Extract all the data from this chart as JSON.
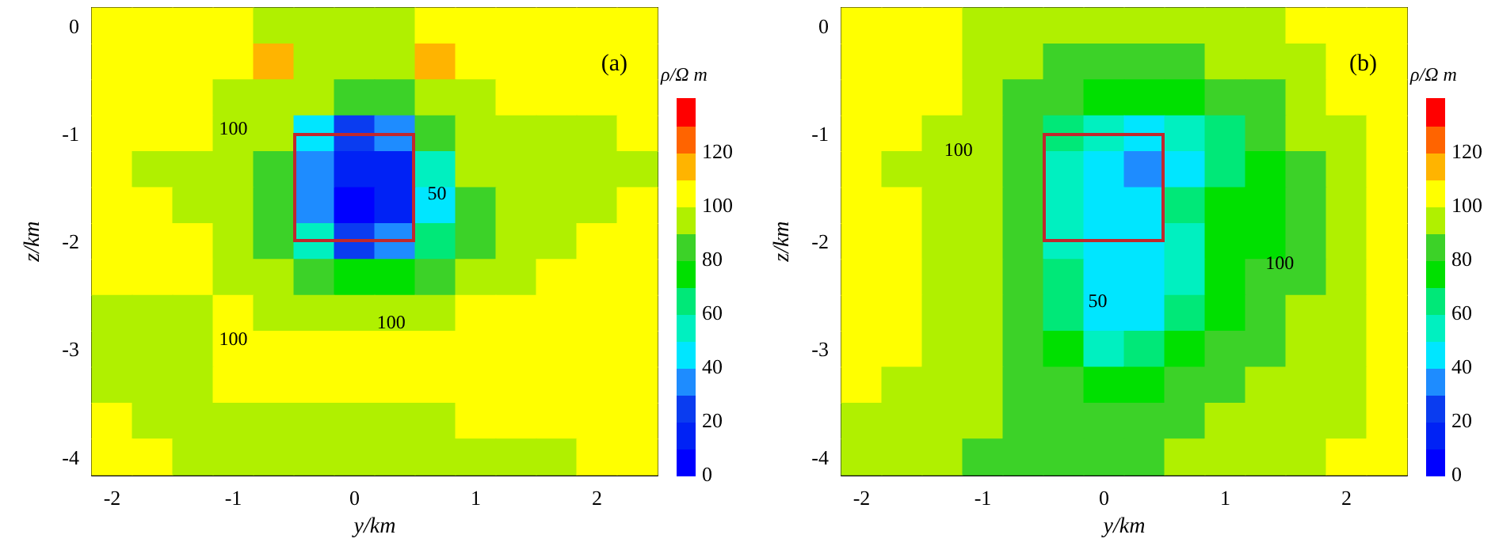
{
  "chart_data": [
    {
      "type": "heatmap",
      "title": "(a)",
      "xlabel": "y/km",
      "ylabel": "z/km",
      "clabel": "ρ/Ω m",
      "categories": [
        "-2",
        null,
        null,
        "-1",
        null,
        null,
        "0",
        null,
        null,
        "1",
        null,
        null,
        "2",
        null
      ],
      "y_categories": [
        "0",
        null,
        null,
        "-1",
        null,
        null,
        "-2",
        null,
        null,
        "-3",
        null,
        null,
        "-4"
      ],
      "cells": [
        [
          105,
          105,
          105,
          105,
          95,
          95,
          95,
          95,
          105,
          105,
          105,
          105,
          105,
          105
        ],
        [
          105,
          105,
          105,
          105,
          115,
          95,
          90,
          95,
          115,
          105,
          105,
          105,
          105,
          105
        ],
        [
          105,
          105,
          105,
          95,
          95,
          90,
          80,
          80,
          90,
          95,
          105,
          105,
          105,
          105
        ],
        [
          105,
          105,
          105,
          95,
          90,
          45,
          25,
          35,
          85,
          95,
          95,
          95,
          95,
          105
        ],
        [
          105,
          95,
          95,
          95,
          85,
          35,
          15,
          15,
          50,
          90,
          95,
          95,
          95,
          95
        ],
        [
          105,
          105,
          95,
          95,
          80,
          30,
          5,
          15,
          40,
          85,
          95,
          95,
          95,
          105
        ],
        [
          105,
          105,
          105,
          95,
          85,
          55,
          25,
          35,
          60,
          85,
          95,
          95,
          105,
          105
        ],
        [
          105,
          105,
          105,
          95,
          90,
          80,
          70,
          70,
          85,
          95,
          95,
          105,
          105,
          105
        ],
        [
          95,
          95,
          95,
          105,
          95,
          95,
          95,
          95,
          95,
          105,
          105,
          105,
          105,
          105
        ],
        [
          95,
          95,
          95,
          105,
          105,
          105,
          105,
          105,
          105,
          105,
          105,
          105,
          105,
          105
        ],
        [
          95,
          95,
          95,
          105,
          105,
          105,
          105,
          105,
          105,
          105,
          105,
          105,
          105,
          105
        ],
        [
          105,
          95,
          95,
          95,
          95,
          95,
          95,
          95,
          95,
          105,
          105,
          105,
          105,
          105
        ],
        [
          105,
          105,
          95,
          95,
          95,
          95,
          95,
          95,
          95,
          95,
          95,
          95,
          105,
          105
        ]
      ],
      "clim": [
        0,
        140
      ],
      "cticks": [
        0,
        20,
        40,
        60,
        80,
        100,
        120
      ],
      "colors": [
        "#0000ff",
        "#0022f5",
        "#0a3cf0",
        "#1e8cff",
        "#00e6ff",
        "#00f0c0",
        "#00e878",
        "#00e000",
        "#3cd228",
        "#b0f000",
        "#ffff00",
        "#ffb400",
        "#ff6400",
        "#ff0000"
      ],
      "annotations": [
        "100",
        "50",
        "100",
        "100"
      ]
    },
    {
      "type": "heatmap",
      "title": "(b)",
      "xlabel": "y/km",
      "ylabel": "z/km",
      "clabel": "ρ/Ω m",
      "categories": [
        "-2",
        null,
        null,
        "-1",
        null,
        null,
        "0",
        null,
        null,
        "1",
        null,
        null,
        "2",
        null
      ],
      "y_categories": [
        "0",
        null,
        null,
        "-1",
        null,
        null,
        "-2",
        null,
        null,
        "-3",
        null,
        null,
        "-4"
      ],
      "cells": [
        [
          105,
          105,
          105,
          95,
          95,
          95,
          95,
          95,
          95,
          95,
          95,
          105,
          105,
          105
        ],
        [
          105,
          105,
          105,
          95,
          95,
          85,
          85,
          85,
          85,
          95,
          95,
          95,
          105,
          105
        ],
        [
          105,
          105,
          105,
          95,
          85,
          85,
          75,
          75,
          75,
          85,
          85,
          95,
          105,
          105
        ],
        [
          105,
          105,
          95,
          95,
          85,
          65,
          55,
          45,
          55,
          65,
          85,
          95,
          95,
          105
        ],
        [
          105,
          95,
          95,
          95,
          85,
          55,
          45,
          35,
          45,
          65,
          75,
          85,
          95,
          105
        ],
        [
          105,
          105,
          95,
          95,
          85,
          55,
          45,
          45,
          65,
          75,
          75,
          85,
          95,
          105
        ],
        [
          105,
          105,
          95,
          95,
          85,
          55,
          45,
          45,
          55,
          75,
          75,
          85,
          95,
          105
        ],
        [
          105,
          105,
          95,
          95,
          85,
          65,
          45,
          45,
          55,
          75,
          85,
          85,
          95,
          105
        ],
        [
          105,
          105,
          95,
          95,
          85,
          65,
          45,
          45,
          65,
          75,
          85,
          95,
          95,
          105
        ],
        [
          105,
          105,
          95,
          95,
          85,
          75,
          55,
          65,
          75,
          85,
          85,
          95,
          95,
          105
        ],
        [
          105,
          95,
          95,
          95,
          85,
          85,
          75,
          75,
          85,
          85,
          95,
          95,
          95,
          105
        ],
        [
          95,
          95,
          95,
          95,
          85,
          85,
          85,
          85,
          85,
          95,
          95,
          95,
          95,
          105
        ],
        [
          95,
          95,
          95,
          85,
          85,
          85,
          85,
          85,
          95,
          95,
          95,
          95,
          105,
          105
        ]
      ],
      "clim": [
        0,
        140
      ],
      "cticks": [
        0,
        20,
        40,
        60,
        80,
        100,
        120
      ],
      "colors": [
        "#0000ff",
        "#0022f5",
        "#0a3cf0",
        "#1e8cff",
        "#00e6ff",
        "#00f0c0",
        "#00e878",
        "#00e000",
        "#3cd228",
        "#b0f000",
        "#ffff00",
        "#ffb400",
        "#ff6400",
        "#ff0000"
      ],
      "annotations": [
        "100",
        "50",
        "100"
      ]
    }
  ]
}
